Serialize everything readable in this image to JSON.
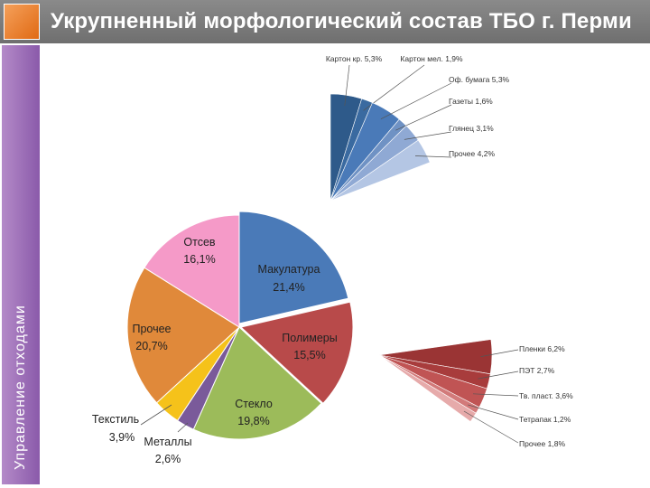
{
  "header": {
    "title": "Укрупненный морфологический состав ТБО г. Перми"
  },
  "sidebar": {
    "label": "Управление отходами"
  },
  "chart_data": [
    {
      "type": "pie",
      "slices": [
        {
          "name": "Макулатура",
          "value": 21.4,
          "label": "21,4%",
          "color": "#4a7ab8"
        },
        {
          "name": "Полимеры",
          "value": 15.5,
          "label": "15,5%",
          "color": "#b84a4a"
        },
        {
          "name": "Стекло",
          "value": 19.8,
          "label": "19,8%",
          "color": "#9cbb5a"
        },
        {
          "name": "Металлы",
          "value": 2.6,
          "label": "2,6%",
          "color": "#7a5a9a"
        },
        {
          "name": "Текстиль",
          "value": 3.9,
          "label": "3,9%",
          "color": "#f5c21a"
        },
        {
          "name": "Прочее",
          "value": 20.7,
          "label": "20,7%",
          "color": "#e0893a"
        },
        {
          "name": "Отсев",
          "value": 16.1,
          "label": "16,1%",
          "color": "#f59ac8"
        }
      ]
    },
    {
      "type": "pie",
      "parent": "Макулатура",
      "slices": [
        {
          "label": "Картон кр. 5,3%",
          "value": 5.3,
          "color": "#2e5a8a"
        },
        {
          "label": "Картон мел. 1,9%",
          "value": 1.9,
          "color": "#3a6aa0"
        },
        {
          "label": "Оф. бумага 5,3%",
          "value": 5.3,
          "color": "#4a7ab8"
        },
        {
          "label": "Газеты 1,6%",
          "value": 1.6,
          "color": "#6f92c4"
        },
        {
          "label": "Глянец 3,1%",
          "value": 3.1,
          "color": "#8fa9d4"
        },
        {
          "label": "Прочее 4,2%",
          "value": 4.2,
          "color": "#b4c6e4"
        }
      ]
    },
    {
      "type": "pie",
      "parent": "Полимеры",
      "slices": [
        {
          "label": "Пленки 6,2%",
          "value": 6.2,
          "color": "#9a3434"
        },
        {
          "label": "ПЭТ 2,7%",
          "value": 2.7,
          "color": "#a83c3c"
        },
        {
          "label": "Тв. пласт. 3,6%",
          "value": 3.6,
          "color": "#c05454"
        },
        {
          "label": "Тетрапак 1,2%",
          "value": 1.2,
          "color": "#d27a7a"
        },
        {
          "label": "Прочее 1,8%",
          "value": 1.8,
          "color": "#e6aaaa"
        }
      ]
    }
  ]
}
